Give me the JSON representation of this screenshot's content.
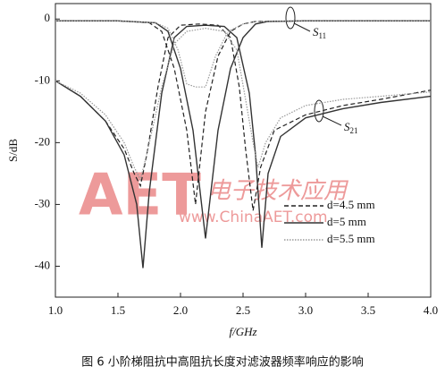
{
  "chart_data": {
    "type": "line",
    "x_label": "f/GHz",
    "y_label": "S/dB",
    "caption": "图 6   小阶梯阻抗中高阻抗长度对滤波器频率响应的影响",
    "watermark_logo": "AET",
    "watermark_cn": "电子技术应用",
    "watermark_url": "www.ChinaAET.com",
    "xlim": [
      1.0,
      4.0
    ],
    "ylim": [
      -45,
      2.5
    ],
    "xticks": [
      {
        "value": 1,
        "label": "1.0"
      },
      {
        "value": 1.5,
        "label": "1.5"
      },
      {
        "value": 2,
        "label": "2.0"
      },
      {
        "value": 2.5,
        "label": "2.5"
      },
      {
        "value": 3,
        "label": "3.0"
      },
      {
        "value": 3.5,
        "label": "3.5"
      },
      {
        "value": 4,
        "label": "4.0"
      }
    ],
    "yticks": [
      0,
      -10,
      -20,
      -30,
      -40
    ],
    "grid": false,
    "legend_position": "right",
    "annotations": [
      {
        "text": "S",
        "sub": "11"
      },
      {
        "text": "S",
        "sub": "21"
      }
    ],
    "series": [
      {
        "name": "d=4.5 mm",
        "color": "#222222",
        "style": "dashed",
        "x": [
          1,
          1.2,
          1.4,
          1.55,
          1.63,
          1.68,
          1.73,
          1.82,
          1.9,
          2.0,
          2.15,
          2.3,
          2.4,
          2.47,
          2.52,
          2.58,
          2.64,
          2.75,
          3.0,
          3.3,
          3.6,
          4.0
        ],
        "values": [
          -10,
          -12.5,
          -16.5,
          -21,
          -25,
          -27,
          -22,
          -11,
          -3,
          -1,
          -0.8,
          -1,
          -3,
          -11,
          -21,
          -31,
          -24,
          -18,
          -15.5,
          -14,
          -13,
          -11.5
        ],
        "s11_x": [
          1,
          1.5,
          1.75,
          1.85,
          1.95,
          2.05,
          2.12,
          2.2,
          2.3,
          2.4,
          2.5,
          2.6,
          3,
          4
        ],
        "s11": [
          -0.3,
          -0.3,
          -0.6,
          -2,
          -8,
          -18,
          -30,
          -15,
          -6,
          -2,
          -0.8,
          -0.4,
          -0.3,
          -0.3
        ]
      },
      {
        "name": "d=5 mm",
        "color": "#333333",
        "style": "solid",
        "x": [
          1,
          1.2,
          1.4,
          1.55,
          1.65,
          1.7,
          1.75,
          1.85,
          1.95,
          2.05,
          2.2,
          2.35,
          2.45,
          2.55,
          2.6,
          2.65,
          2.7,
          2.8,
          3.0,
          3.3,
          3.6,
          4.0
        ],
        "values": [
          -10,
          -12.5,
          -16.5,
          -22,
          -30,
          -40.3,
          -28,
          -12,
          -3,
          -1.2,
          -1,
          -1.2,
          -3,
          -12,
          -22,
          -37,
          -25,
          -19,
          -16,
          -14.5,
          -13.5,
          -12.5
        ],
        "s11_x": [
          1,
          1.5,
          1.8,
          1.9,
          2.0,
          2.1,
          2.2,
          2.3,
          2.4,
          2.5,
          2.6,
          2.7,
          3,
          4
        ],
        "s11": [
          -0.3,
          -0.3,
          -0.6,
          -2,
          -8,
          -18,
          -35.5,
          -18,
          -8,
          -3,
          -0.8,
          -0.4,
          -0.3,
          -0.3
        ]
      },
      {
        "name": "d=5.5 mm",
        "color": "#999999",
        "style": "dotted",
        "x": [
          1,
          1.2,
          1.4,
          1.55,
          1.63,
          1.68,
          1.74,
          1.85,
          1.95,
          2.05,
          2.2,
          2.35,
          2.45,
          2.52,
          2.58,
          2.62,
          2.68,
          2.8,
          3.0,
          3.3,
          3.6,
          4.0
        ],
        "values": [
          -10,
          -12,
          -15.5,
          -20,
          -24,
          -26,
          -21,
          -11,
          -4,
          -2,
          -1.5,
          -2,
          -5,
          -13,
          -20,
          -24,
          -20,
          -16,
          -14,
          -13,
          -12.5,
          -11.8
        ],
        "s11_x": [
          1,
          1.5,
          1.8,
          1.9,
          1.98,
          2.05,
          2.12,
          2.2,
          2.28,
          2.38,
          2.5,
          2.6,
          3,
          4
        ],
        "s11": [
          -0.3,
          -0.3,
          -0.6,
          -1.5,
          -5,
          -10.5,
          -11,
          -11,
          -6,
          -2,
          -0.8,
          -0.4,
          -0.3,
          -0.3
        ]
      }
    ]
  }
}
